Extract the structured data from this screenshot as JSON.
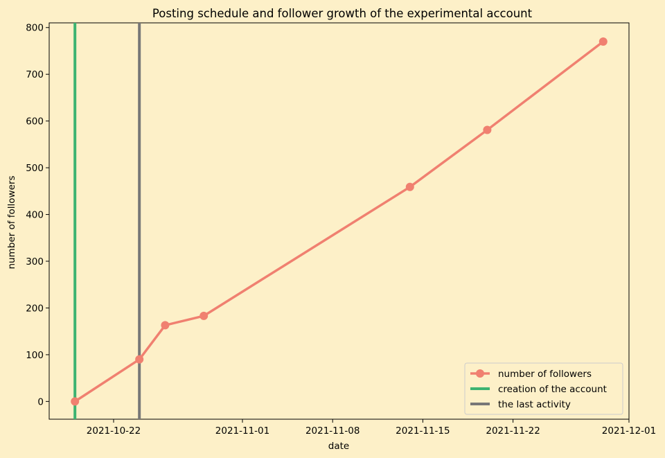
{
  "chart_data": {
    "type": "line",
    "title": "Posting schedule and follower growth of the experimental account",
    "xlabel": "date",
    "ylabel": "number of followers",
    "x_axis_type": "date",
    "xlim": [
      "2021-10-17",
      "2021-12-01"
    ],
    "ylim": [
      -38,
      810
    ],
    "x_ticks": [
      "2021-10-22",
      "2021-11-01",
      "2021-11-08",
      "2021-11-15",
      "2021-11-22",
      "2021-12-01"
    ],
    "y_ticks": [
      0,
      100,
      200,
      300,
      400,
      500,
      600,
      700,
      800
    ],
    "grid": false,
    "legend_position": "lower-right",
    "series": [
      {
        "name": "number of followers",
        "color": "#f08070",
        "marker": "circle",
        "x": [
          "2021-10-19",
          "2021-10-24",
          "2021-10-26",
          "2021-10-29",
          "2021-11-14",
          "2021-11-20",
          "2021-11-29"
        ],
        "values": [
          0,
          90,
          163,
          183,
          459,
          581,
          770
        ]
      }
    ],
    "vlines": [
      {
        "name": "creation of the account",
        "date": "2021-10-19",
        "color": "#3cb371"
      },
      {
        "name": "the last activity",
        "date": "2021-10-24",
        "color": "#777777"
      }
    ]
  }
}
